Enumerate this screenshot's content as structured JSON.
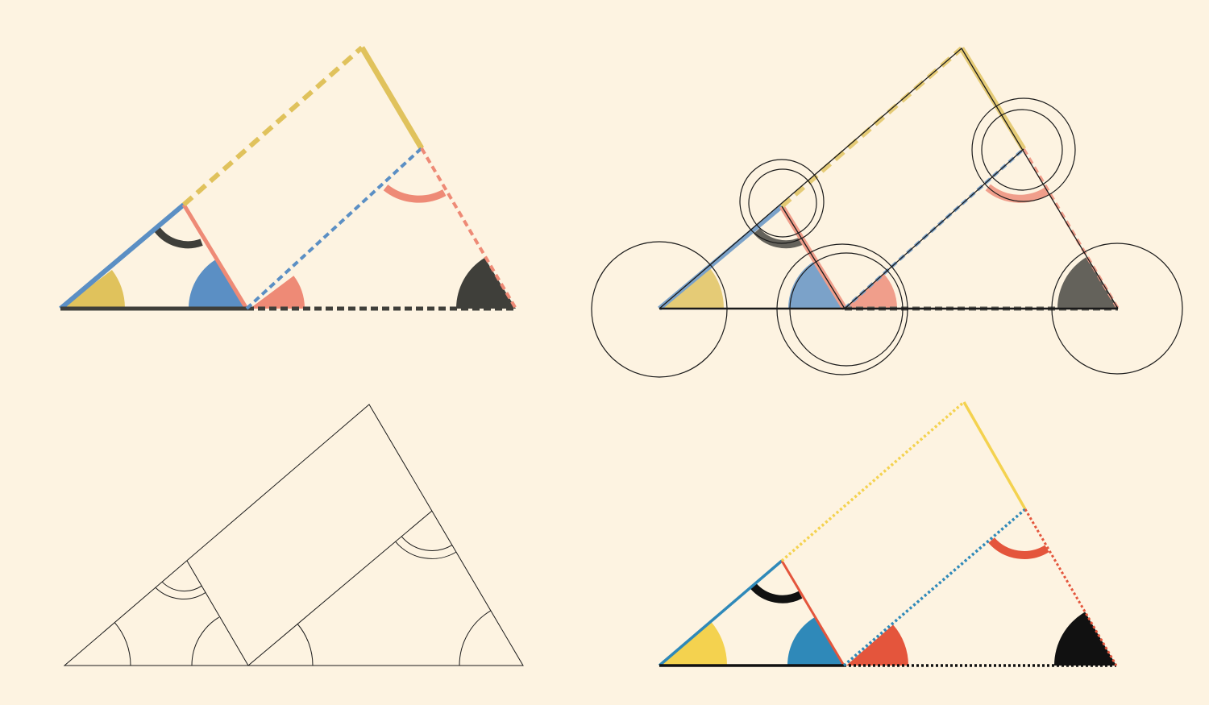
{
  "title": "",
  "background": "#fdf3e1",
  "colors": {
    "yellow_painted": "#e0c25c",
    "blue_painted": "#5b8fc4",
    "red_painted": "#ee8a76",
    "black_painted": "#3f3f3a",
    "yellow": "#f4d24f",
    "blue": "#2f89b9",
    "red": "#e4553c",
    "black": "#111111",
    "outline": "#1a1a1a"
  },
  "panels": [
    {
      "name": "painted-original",
      "style": "painted"
    },
    {
      "name": "compass-construction",
      "style": "construction"
    },
    {
      "name": "line-drawing",
      "style": "outline"
    },
    {
      "name": "modern-rendition",
      "style": "flat-color"
    }
  ]
}
